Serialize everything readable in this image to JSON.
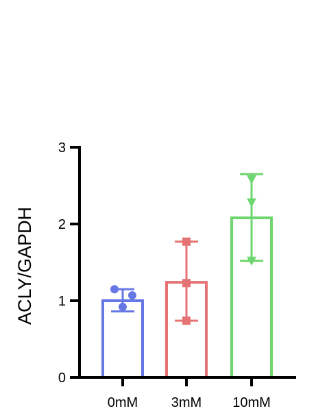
{
  "chart_data": {
    "type": "bar",
    "title": "",
    "xlabel": "",
    "ylabel": "ACLY/GAPDH",
    "categories": [
      "0mM",
      "3mM",
      "10mM"
    ],
    "ylim": [
      0,
      3
    ],
    "yticks": [
      "0",
      "1",
      "2",
      "3"
    ],
    "grid": false,
    "legend": "none",
    "series": [
      {
        "values": [
          1.0,
          1.24,
          2.08
        ],
        "error_low": [
          0.86,
          0.74,
          1.52
        ],
        "error_high": [
          1.15,
          1.77,
          2.65
        ],
        "points": [
          [
            1.15,
            1.07,
            0.92
          ],
          [
            1.77,
            1.23,
            0.74
          ],
          [
            2.58,
            2.28,
            1.52
          ]
        ],
        "colors": [
          "#6677e6",
          "#e57373",
          "#6ed66e"
        ],
        "markers": [
          "circle",
          "square",
          "triangle-down"
        ]
      }
    ]
  }
}
